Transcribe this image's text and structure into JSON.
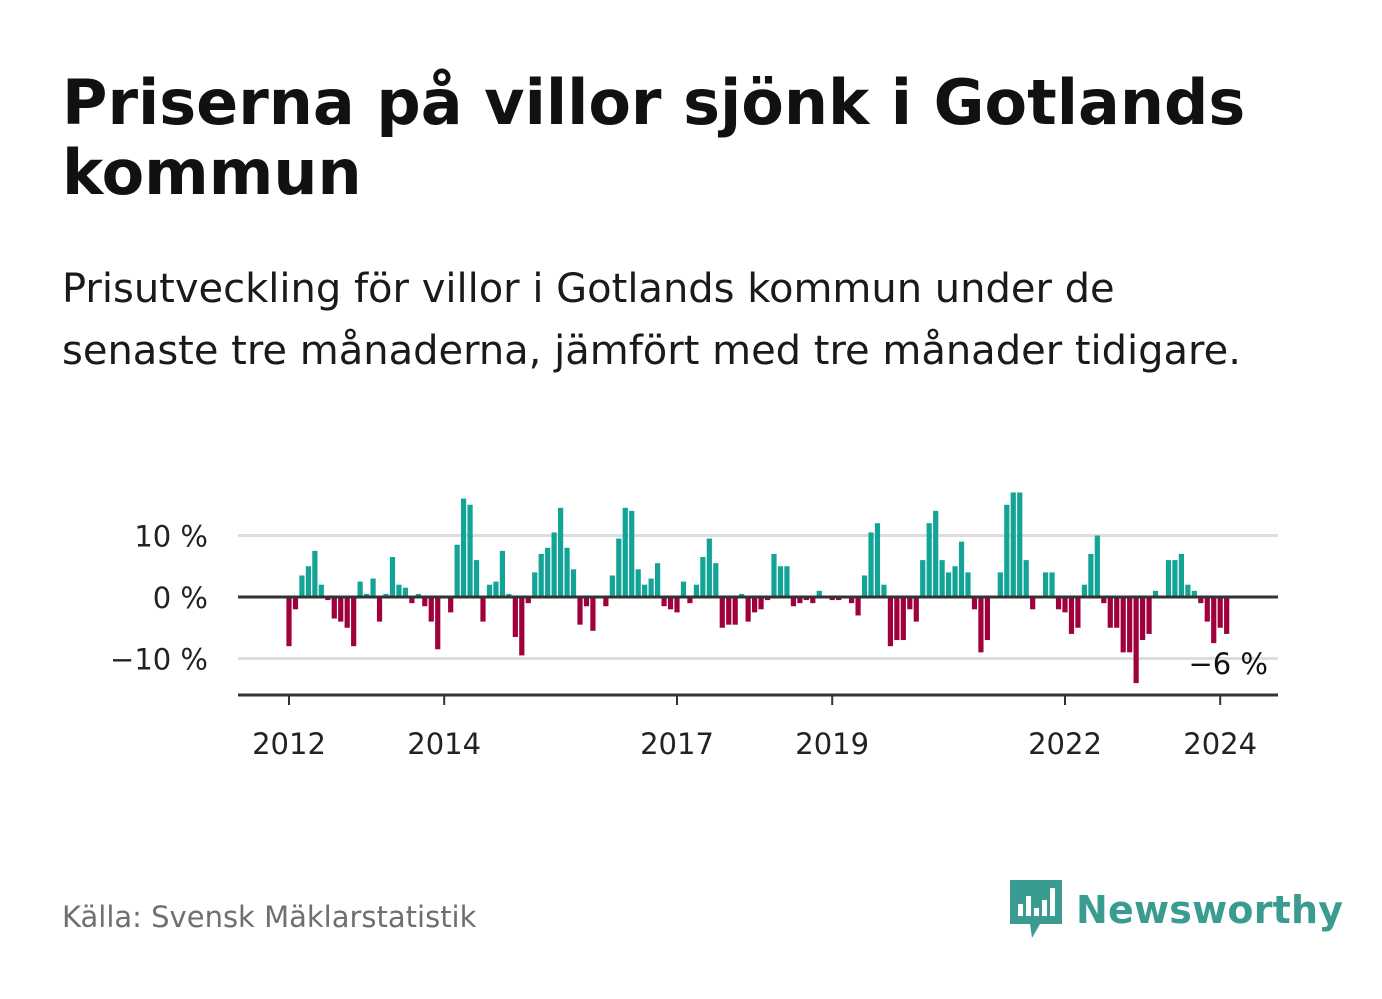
{
  "title": "Priserna på villor sjönk i Gotlands kommun",
  "subtitle": "Prisutveckling för villor i Gotlands kommun under de senaste tre månaderna, jämfört med tre månader tidigare.",
  "source": "Källa: Svensk Mäklarstatistik",
  "brand": {
    "name": "Newsworthy",
    "icon": "newsworthy-logo-icon"
  },
  "colors": {
    "positive": "#12a497",
    "negative": "#a0003c",
    "grid": "#dddddd",
    "axis": "#333333"
  },
  "chart_data": {
    "type": "bar",
    "title": "Priserna på villor sjönk i Gotlands kommun",
    "subtitle": "Prisutveckling för villor i Gotlands kommun under de senaste tre månaderna, jämfört med tre månader tidigare.",
    "xlabel": "",
    "ylabel": "",
    "unit": "%",
    "grid": true,
    "ylim": [
      -16,
      18
    ],
    "y_ticks": [
      {
        "value": 10,
        "label": "10 %"
      },
      {
        "value": 0,
        "label": "0 %"
      },
      {
        "value": -10,
        "label": "−10 %"
      }
    ],
    "x_ticks": [
      "2012",
      "2014",
      "2017",
      "2019",
      "2022",
      "2024"
    ],
    "x_tick_years": [
      2012,
      2014,
      2017,
      2019,
      2022,
      2024
    ],
    "series_start": "2012-01",
    "frequency": "monthly",
    "last_value_label": "−6 %",
    "values": [
      -8,
      -2,
      3.5,
      5,
      7.5,
      2,
      -0.5,
      -3.5,
      -4,
      -5,
      -8,
      2.5,
      0.5,
      3,
      -4,
      0.5,
      6.5,
      2,
      1.5,
      -1,
      0.5,
      -1.5,
      -4,
      -8.5,
      0,
      -2.5,
      8.5,
      16,
      15,
      6,
      -4,
      2,
      2.5,
      7.5,
      0.5,
      -6.5,
      -9.5,
      -1,
      4,
      7,
      8,
      10.5,
      14.5,
      8,
      4.5,
      -4.5,
      -1.5,
      -5.5,
      0,
      -1.5,
      3.5,
      9.5,
      14.5,
      14,
      4.5,
      2,
      3,
      5.5,
      -1.5,
      -2,
      -2.5,
      2.5,
      -1,
      2,
      6.5,
      9.5,
      5.5,
      -5,
      -4.5,
      -4.5,
      0.5,
      -4,
      -2.5,
      -2,
      -0.5,
      7,
      5,
      5,
      -1.5,
      -1,
      -0.5,
      -1,
      1,
      0,
      -0.5,
      -0.5,
      0,
      -1,
      -3,
      3.5,
      10.5,
      12,
      2,
      -8,
      -7,
      -7,
      -2,
      -4,
      6,
      12,
      14,
      6,
      4,
      5,
      9,
      4,
      -2,
      -9,
      -7,
      0,
      4,
      15,
      17,
      17,
      6,
      -2,
      0,
      4,
      4,
      -2,
      -2.5,
      -6,
      -5,
      2,
      7,
      10,
      -1,
      -5,
      -5,
      -9,
      -9,
      -14,
      -7,
      -6,
      1,
      0,
      6,
      6,
      7,
      2,
      1,
      -1,
      -4,
      -7.5,
      -5,
      -6
    ]
  }
}
